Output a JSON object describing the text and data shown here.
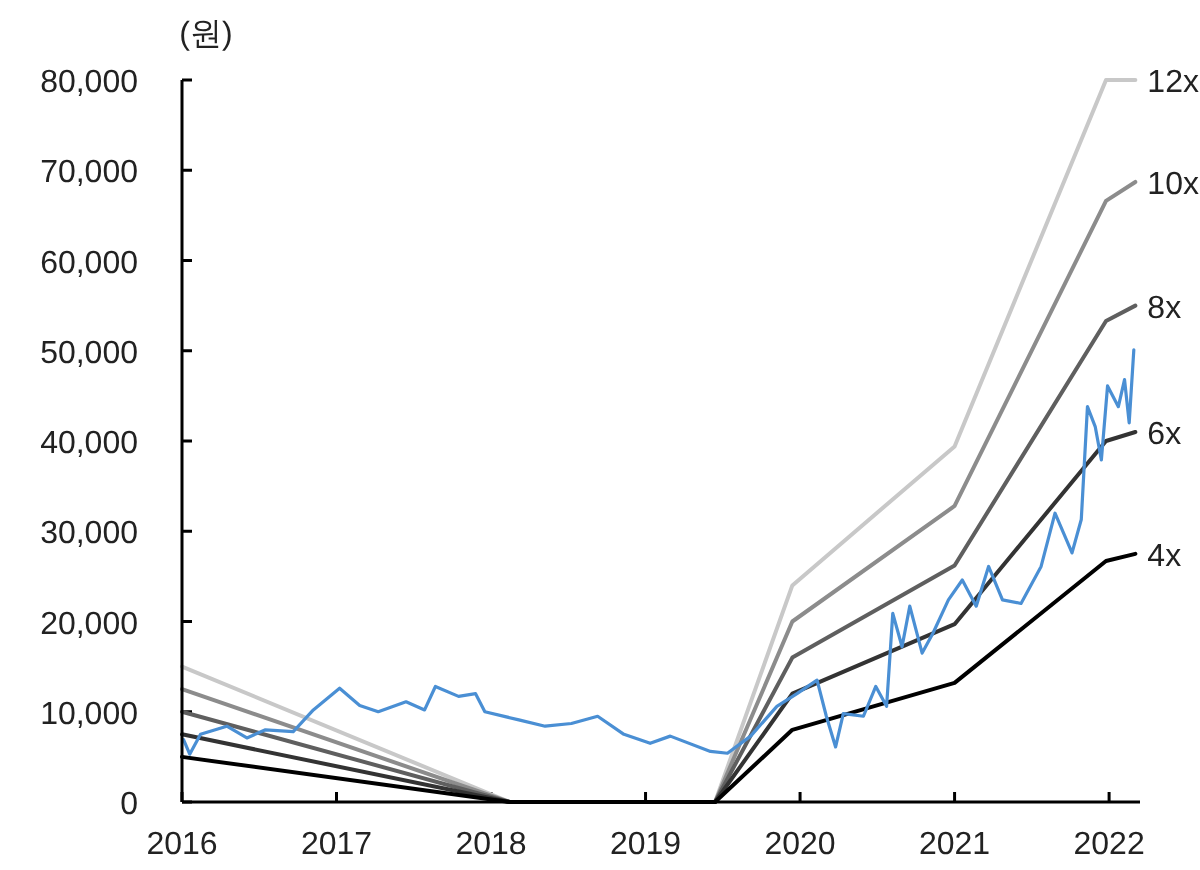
{
  "chart_data": {
    "type": "line",
    "ylabel": "(원)",
    "xlim": [
      2016,
      2022.2
    ],
    "xticks": [
      2016,
      2017,
      2018,
      2019,
      2020,
      2021,
      2022
    ],
    "ylim": [
      0,
      80000
    ],
    "yticks": [
      0,
      {
        "value": 10000,
        "label": "10,000"
      },
      {
        "value": 20000,
        "label": "20,000"
      },
      {
        "value": 30000,
        "label": "30,000"
      },
      {
        "value": 40000,
        "label": "40,000"
      },
      {
        "value": 50000,
        "label": "50,000"
      },
      {
        "value": 60000,
        "label": "60,000"
      },
      {
        "value": 70000,
        "label": "70,000"
      },
      {
        "value": 80000,
        "label": "80,000"
      }
    ],
    "grid": false,
    "legend": false,
    "series": [
      {
        "name": "12x",
        "color": "#c8c8c8",
        "x": [
          2016,
          2018.12,
          2019.45,
          2019.95,
          2021.0,
          2021.98,
          2022.17
        ],
        "values": [
          15000,
          0,
          0,
          24000,
          39400,
          80000,
          80000
        ]
      },
      {
        "name": "10x",
        "color": "#8c8c8c",
        "x": [
          2016,
          2018.12,
          2019.45,
          2019.95,
          2021.0,
          2021.98,
          2022.17
        ],
        "values": [
          12500,
          0,
          0,
          20000,
          32800,
          66600,
          68700
        ]
      },
      {
        "name": "8x",
        "color": "#5f5f5f",
        "x": [
          2016,
          2018.12,
          2019.45,
          2019.95,
          2021.0,
          2021.98,
          2022.17
        ],
        "values": [
          10000,
          0,
          0,
          16000,
          26200,
          53300,
          55000
        ]
      },
      {
        "name": "6x",
        "color": "#333333",
        "x": [
          2016,
          2018.12,
          2019.45,
          2019.95,
          2021.0,
          2021.98,
          2022.17
        ],
        "values": [
          7500,
          0,
          0,
          12000,
          19700,
          40000,
          41000
        ]
      },
      {
        "name": "4x",
        "color": "#000000",
        "x": [
          2016,
          2018.12,
          2019.45,
          2019.95,
          2021.0,
          2021.98,
          2022.17
        ],
        "values": [
          5000,
          0,
          0,
          8000,
          13200,
          26700,
          27500
        ]
      },
      {
        "color": "#4a8fd4",
        "x": [
          2016.01,
          2016.05,
          2016.12,
          2016.29,
          2016.42,
          2016.54,
          2016.72,
          2016.85,
          2017.02,
          2017.15,
          2017.27,
          2017.45,
          2017.57,
          2017.64,
          2017.79,
          2017.9,
          2017.96,
          2018.18,
          2018.35,
          2018.52,
          2018.69,
          2018.86,
          2019.03,
          2019.16,
          2019.42,
          2019.53,
          2019.68,
          2019.85,
          2019.98,
          2020.11,
          2020.17,
          2020.23,
          2020.28,
          2020.41,
          2020.49,
          2020.56,
          2020.6,
          2020.66,
          2020.71,
          2020.79,
          2020.86,
          2020.96,
          2021.05,
          2021.14,
          2021.22,
          2021.31,
          2021.43,
          2021.56,
          2021.65,
          2021.76,
          2021.82,
          2021.86,
          2021.91,
          2021.95,
          2021.99,
          2022.06,
          2022.1,
          2022.13,
          2022.16
        ],
        "values": [
          6900,
          5300,
          7500,
          8400,
          7100,
          8000,
          7800,
          10200,
          12600,
          10700,
          10000,
          11100,
          10200,
          12800,
          11700,
          12000,
          10000,
          9100,
          8400,
          8700,
          9500,
          7500,
          6500,
          7300,
          5600,
          5400,
          7300,
          10600,
          12000,
          13500,
          9500,
          6100,
          9800,
          9500,
          12800,
          10600,
          20900,
          17200,
          21700,
          16500,
          18700,
          22400,
          24600,
          21700,
          26100,
          22400,
          22000,
          26100,
          32000,
          27600,
          31300,
          43800,
          41600,
          37900,
          46100,
          43800,
          46800,
          42000,
          50100
        ]
      }
    ]
  }
}
